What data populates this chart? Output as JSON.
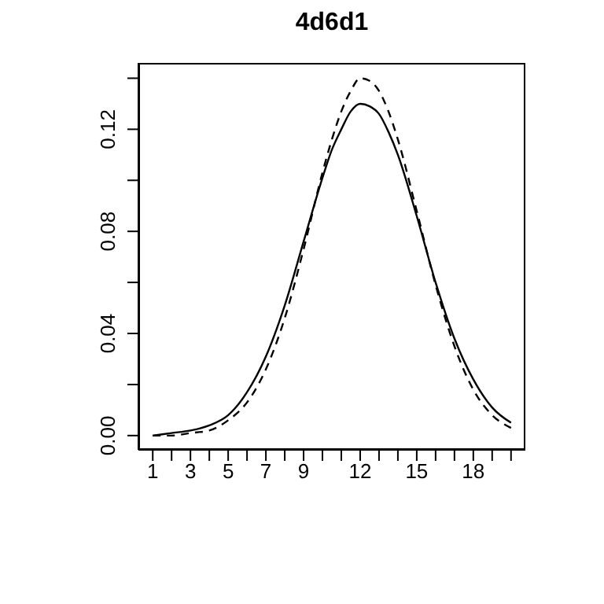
{
  "chart_data": {
    "type": "line",
    "title": "4d6d1",
    "x": [
      1,
      2,
      3,
      4,
      5,
      6,
      7,
      8,
      9,
      10,
      10.5,
      11,
      11.5,
      12,
      12.5,
      13,
      13.5,
      14,
      15,
      16,
      17,
      18,
      19,
      20
    ],
    "series": [
      {
        "color": "#000000",
        "line_style": "solid",
        "values": [
          0.0,
          0.001,
          0.002,
          0.004,
          0.008,
          0.017,
          0.031,
          0.051,
          0.076,
          0.101,
          0.112,
          0.12,
          0.127,
          0.13,
          0.129,
          0.126,
          0.119,
          0.11,
          0.086,
          0.06,
          0.038,
          0.022,
          0.011,
          0.005
        ]
      },
      {
        "color": "#000000",
        "line_style": "dashed",
        "values": [
          0.0,
          0.0,
          0.001,
          0.002,
          0.006,
          0.013,
          0.026,
          0.046,
          0.073,
          0.103,
          0.116,
          0.127,
          0.135,
          0.14,
          0.139,
          0.135,
          0.127,
          0.116,
          0.088,
          0.059,
          0.035,
          0.018,
          0.008,
          0.003
        ]
      }
    ],
    "xlim": [
      0.24,
      20.76
    ],
    "xticks": [
      1,
      {
        "value": 2,
        "label": null
      },
      3,
      {
        "value": 4,
        "label": null
      },
      5,
      {
        "value": 6,
        "label": null
      },
      7,
      {
        "value": 8,
        "label": null
      },
      9,
      {
        "value": 10,
        "label": null
      },
      {
        "value": 11,
        "label": null
      },
      12,
      {
        "value": 13,
        "label": null
      },
      {
        "value": 14,
        "label": null
      },
      15,
      {
        "value": 16,
        "label": null
      },
      {
        "value": 17,
        "label": null
      },
      18,
      {
        "value": 19,
        "label": null
      },
      {
        "value": 20,
        "label": null
      }
    ],
    "ylim": [
      -0.0056,
      0.146
    ],
    "yticks": [
      {
        "value": 0,
        "label": "0.00"
      },
      {
        "value": 0.02,
        "label": null
      },
      {
        "value": 0.04,
        "label": "0.04"
      },
      {
        "value": 0.06,
        "label": null
      },
      {
        "value": 0.08,
        "label": "0.08"
      },
      {
        "value": 0.1,
        "label": null
      },
      {
        "value": 0.12,
        "label": "0.12"
      },
      {
        "value": 0.14,
        "label": null
      }
    ],
    "marker": "none"
  }
}
